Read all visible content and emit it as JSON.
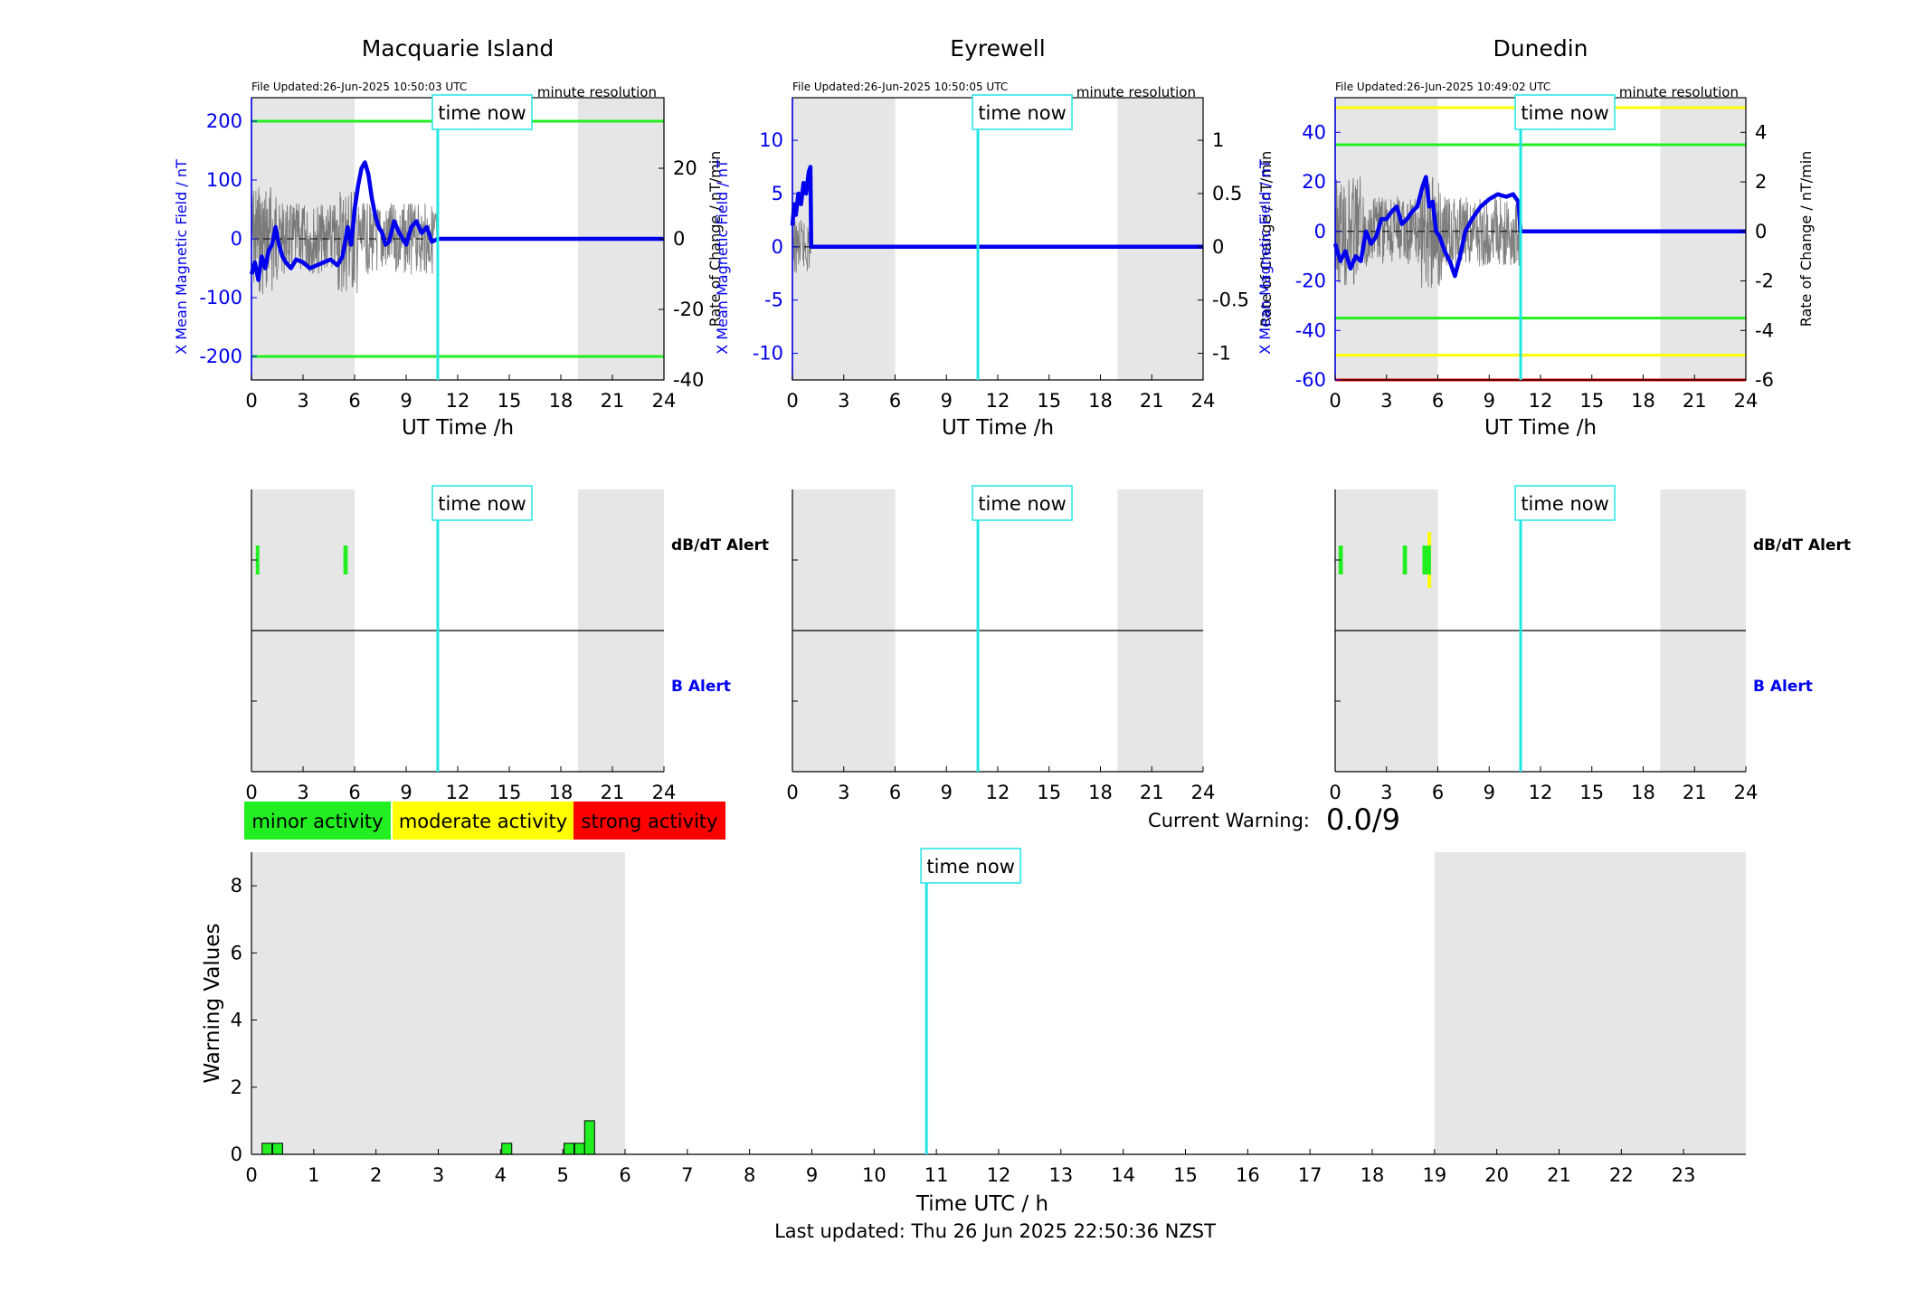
{
  "footer": "Last updated: Thu 26 Jun 2025 22:50:36 NZST",
  "time_now_label": "time now",
  "time_now_ut": 10.84,
  "resolution_label": "minute resolution",
  "legend": [
    {
      "label": "minor activity",
      "color": "#22ee22"
    },
    {
      "label": "moderate activity",
      "color": "#ffff00"
    },
    {
      "label": "strong activity",
      "color": "#ff0000"
    }
  ],
  "current_warning": {
    "label": "Current Warning:",
    "value": "0.0/9"
  },
  "alert_labels": {
    "dbdt": "dB/dT Alert",
    "b": "B Alert"
  },
  "colors": {
    "field": "#0000ee",
    "threshold_minor": "#22ee22",
    "threshold_moderate": "#ffff00",
    "threshold_strong": "#ff0000",
    "time_now": "#22e5e5",
    "night": "#e6e6e6",
    "rate": "#555555"
  },
  "chart_data": [
    {
      "type": "line",
      "title": "Macquarie Island",
      "file_updated": "File Updated:26-Jun-2025 10:50:03 UTC",
      "xlabel": "UT Time /h",
      "ylabel_left": "X Mean Magnetic Field / nT",
      "ylabel_right": "Rate of Change / nT/min",
      "xlim": [
        0,
        24
      ],
      "xticks": [
        0,
        3,
        6,
        9,
        12,
        15,
        18,
        21,
        24
      ],
      "ylim_left": [
        -240,
        240
      ],
      "yticks_left": [
        -200,
        -100,
        0,
        100,
        200
      ],
      "ylim_right": [
        -40,
        40
      ],
      "yticks_right": [
        -40,
        -20,
        0,
        20
      ],
      "night_shading": [
        [
          0,
          6
        ],
        [
          19,
          24
        ]
      ],
      "thresholds": [
        {
          "value": 200,
          "level": "minor"
        },
        {
          "value": -200,
          "level": "minor"
        }
      ],
      "series": [
        {
          "x": [
            0,
            0.2,
            0.4,
            0.6,
            0.8,
            1,
            1.2,
            1.4,
            1.6,
            1.8,
            2,
            2.3,
            2.6,
            3,
            3.4,
            3.8,
            4.2,
            4.6,
            5,
            5.3,
            5.6,
            5.8,
            6,
            6.2,
            6.4,
            6.6,
            6.8,
            7,
            7.2,
            7.4,
            7.6,
            7.8,
            8,
            8.3,
            8.6,
            9,
            9.3,
            9.6,
            9.9,
            10.2,
            10.5,
            10.84,
            24
          ],
          "y": [
            -60,
            -40,
            -70,
            -30,
            -50,
            -20,
            -10,
            20,
            -10,
            -30,
            -40,
            -50,
            -35,
            -40,
            -50,
            -45,
            -40,
            -35,
            -45,
            -30,
            20,
            -10,
            50,
            90,
            120,
            130,
            110,
            70,
            40,
            20,
            10,
            -10,
            -5,
            30,
            10,
            -10,
            20,
            30,
            10,
            20,
            -5,
            0,
            0
          ]
        }
      ]
    },
    {
      "type": "line",
      "title": "Eyrewell",
      "file_updated": "File Updated:26-Jun-2025 10:50:05 UTC",
      "xlabel": "UT Time /h",
      "ylabel_left": "X Mean Magnetic Field / nT",
      "ylabel_right": "Rate of Change / nT/min",
      "xlim": [
        0,
        24
      ],
      "xticks": [
        0,
        3,
        6,
        9,
        12,
        15,
        18,
        21,
        24
      ],
      "ylim_left": [
        -12.5,
        14
      ],
      "yticks_left": [
        -10,
        -5,
        0,
        5,
        10
      ],
      "ylim_right": [
        -1.25,
        1.4
      ],
      "yticks_right": [
        -1,
        -0.5,
        0,
        0.5,
        1
      ],
      "night_shading": [
        [
          0,
          6
        ],
        [
          19,
          24
        ]
      ],
      "thresholds": [],
      "series": [
        {
          "x": [
            0,
            0.1,
            0.2,
            0.35,
            0.5,
            0.65,
            0.8,
            0.95,
            1.05,
            1.1,
            1.15,
            24
          ],
          "y": [
            2,
            4,
            3,
            5,
            4,
            6,
            5,
            7,
            7.5,
            0,
            0,
            0
          ]
        }
      ]
    },
    {
      "type": "line",
      "title": "Dunedin",
      "file_updated": "File Updated:26-Jun-2025 10:49:02 UTC",
      "xlabel": "UT Time /h",
      "ylabel_left": "X Mean Magnetic Field / nT",
      "ylabel_right": "Rate of Change / nT/min",
      "xlim": [
        0,
        24
      ],
      "xticks": [
        0,
        3,
        6,
        9,
        12,
        15,
        18,
        21,
        24
      ],
      "ylim_left": [
        -60,
        54
      ],
      "yticks_left": [
        -60,
        -40,
        -20,
        0,
        20,
        40
      ],
      "ylim_right": [
        -6,
        5.4
      ],
      "yticks_right": [
        -6,
        -4,
        -2,
        0,
        2,
        4
      ],
      "night_shading": [
        [
          0,
          6
        ],
        [
          19,
          24
        ]
      ],
      "thresholds": [
        {
          "value": 50,
          "level": "moderate"
        },
        {
          "value": 35,
          "level": "minor"
        },
        {
          "value": -35,
          "level": "minor"
        },
        {
          "value": -50,
          "level": "moderate"
        },
        {
          "value": -60,
          "level": "strong"
        }
      ],
      "series": [
        {
          "x": [
            0,
            0.3,
            0.6,
            0.9,
            1.2,
            1.5,
            1.8,
            2.1,
            2.4,
            2.7,
            3,
            3.3,
            3.6,
            3.9,
            4.2,
            4.5,
            4.8,
            5.1,
            5.3,
            5.5,
            5.7,
            5.9,
            6.1,
            6.4,
            6.7,
            7,
            7.3,
            7.6,
            8,
            8.5,
            9,
            9.5,
            10,
            10.4,
            10.7,
            10.84,
            24
          ],
          "y": [
            -5,
            -12,
            -8,
            -15,
            -10,
            -12,
            0,
            -5,
            -2,
            5,
            5,
            8,
            10,
            3,
            5,
            8,
            10,
            18,
            22,
            10,
            12,
            0,
            -2,
            -8,
            -12,
            -18,
            -10,
            0,
            5,
            10,
            13,
            15,
            14,
            15,
            12,
            0,
            0
          ]
        }
      ]
    },
    {
      "type": "bar",
      "title": "",
      "xlabel": "Time UTC / h",
      "ylabel": "Warning Values",
      "xlim": [
        0,
        24
      ],
      "xticks": [
        0,
        1,
        2,
        3,
        4,
        5,
        6,
        7,
        8,
        9,
        10,
        11,
        12,
        13,
        14,
        15,
        16,
        17,
        18,
        19,
        20,
        21,
        22,
        23
      ],
      "ylim": [
        0,
        9
      ],
      "yticks": [
        0,
        2,
        4,
        6,
        8
      ],
      "night_shading": [
        [
          0,
          6
        ],
        [
          19,
          24
        ]
      ],
      "bars": {
        "x": [
          0.25,
          0.42,
          4.1,
          5.1,
          5.27,
          5.43
        ],
        "width": 0.16,
        "values": [
          0.33,
          0.33,
          0.33,
          0.33,
          0.33,
          1.0
        ],
        "color": "#22ee22"
      }
    }
  ],
  "alert_panels": [
    {
      "station": "Macquarie Island",
      "night_shading": [
        [
          0,
          6
        ],
        [
          19,
          24
        ]
      ],
      "xticks": [
        0,
        3,
        6,
        9,
        12,
        15,
        18,
        21,
        24
      ],
      "dbdt_alerts": [
        {
          "start": 0.25,
          "end": 0.45,
          "level": "minor"
        },
        {
          "start": 5.35,
          "end": 5.6,
          "level": "minor"
        }
      ],
      "b_alerts": []
    },
    {
      "station": "Eyrewell",
      "night_shading": [
        [
          0,
          6
        ],
        [
          19,
          24
        ]
      ],
      "xticks": [
        0,
        3,
        6,
        9,
        12,
        15,
        18,
        21,
        24
      ],
      "dbdt_alerts": [],
      "b_alerts": []
    },
    {
      "station": "Dunedin",
      "night_shading": [
        [
          0,
          6
        ],
        [
          19,
          24
        ]
      ],
      "xticks": [
        0,
        3,
        6,
        9,
        12,
        15,
        18,
        21,
        24
      ],
      "dbdt_alerts": [
        {
          "start": 0.2,
          "end": 0.45,
          "level": "minor"
        },
        {
          "start": 3.95,
          "end": 4.2,
          "level": "minor"
        },
        {
          "start": 5.1,
          "end": 5.6,
          "level": "minor"
        },
        {
          "start": 5.4,
          "end": 5.6,
          "level": "moderate",
          "tall": true
        }
      ],
      "b_alerts": []
    }
  ]
}
